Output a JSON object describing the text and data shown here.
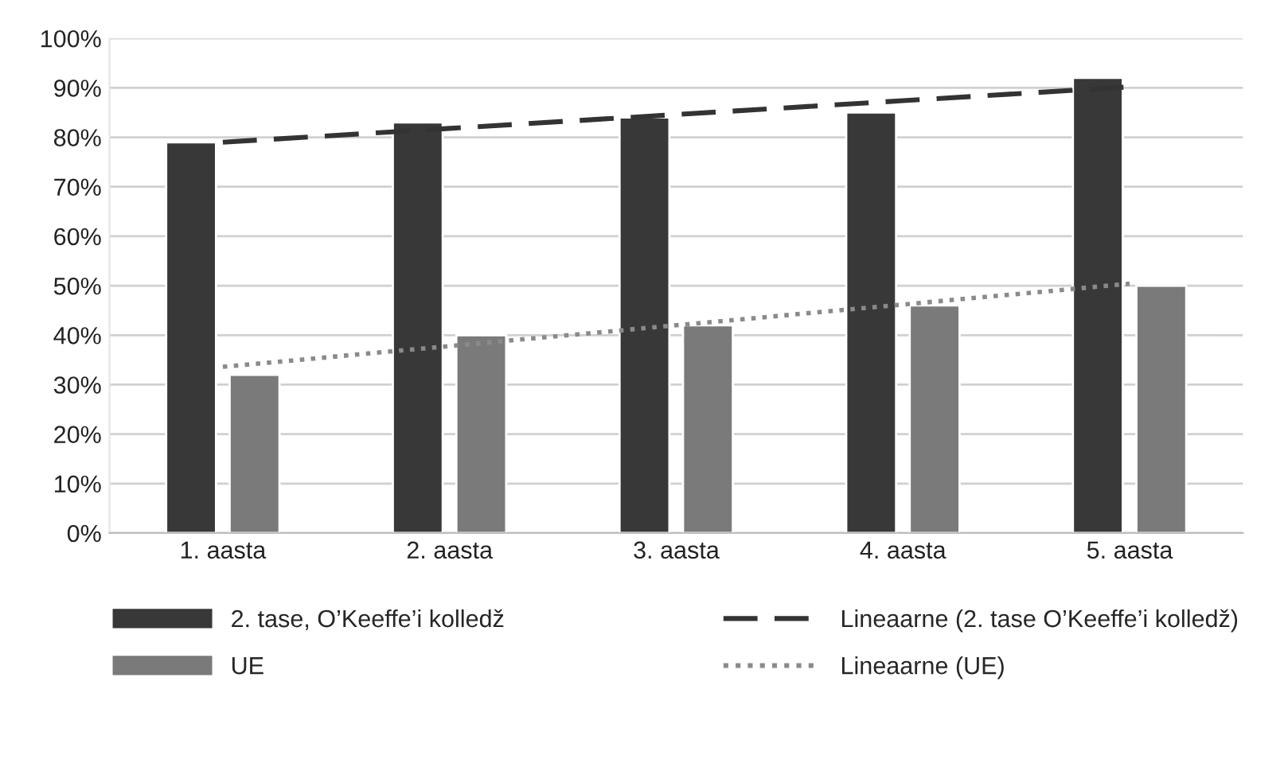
{
  "chart_data": {
    "type": "bar",
    "categories": [
      "1. aasta",
      "2. aasta",
      "3. aasta",
      "4. aasta",
      "5. aasta"
    ],
    "series": [
      {
        "name": "2. tase, O’Keeffe’i kolledž",
        "color": "#383838",
        "values": [
          79,
          83,
          84,
          85,
          92
        ]
      },
      {
        "name": "UE",
        "color": "#7a7a7a",
        "values": [
          32,
          40,
          42,
          46,
          50
        ]
      },
      {
        "name": "Lineaarne (2. tase O’Keeffe’i kolledž)",
        "type": "line",
        "line_style": "dashed",
        "color": "#333333",
        "values": [
          79,
          81.8,
          84.6,
          87.4,
          90.2
        ]
      },
      {
        "name": "Lineaarne (UE)",
        "type": "line",
        "line_style": "dotted",
        "color": "#8a8a8a",
        "values": [
          33.6,
          37.8,
          42,
          46.2,
          50.4
        ]
      }
    ],
    "ylim": [
      0,
      100
    ],
    "yticks": [
      {
        "value": 0,
        "label": "0%"
      },
      {
        "value": 10,
        "label": "10%"
      },
      {
        "value": 20,
        "label": "20%"
      },
      {
        "value": 30,
        "label": "30%"
      },
      {
        "value": 40,
        "label": "40%"
      },
      {
        "value": 50,
        "label": "50%"
      },
      {
        "value": 60,
        "label": "60%"
      },
      {
        "value": 70,
        "label": "70%"
      },
      {
        "value": 80,
        "label": "80%"
      },
      {
        "value": 90,
        "label": "90%"
      },
      {
        "value": 100,
        "label": "100%"
      }
    ],
    "grid": "y",
    "legend": "bottom"
  }
}
